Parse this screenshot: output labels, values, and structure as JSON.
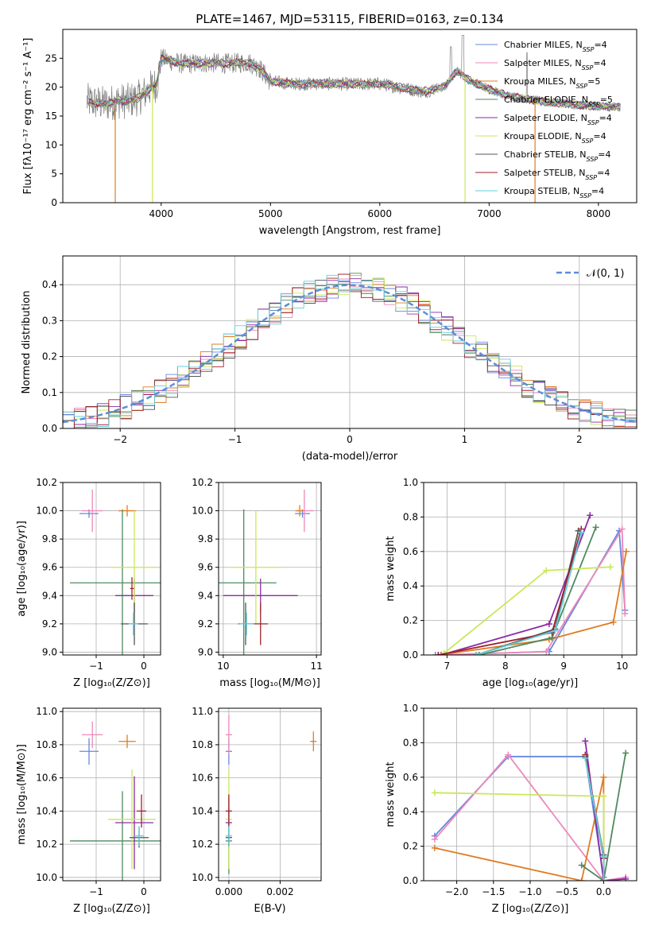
{
  "figure_title": "PLATE=1467, MJD=53115, FIBERID=0163, z=0.134",
  "colors": {
    "c1": "#6688dd",
    "c2": "#ee88bb",
    "c3": "#e07b22",
    "c4": "#4f8a5f",
    "c5": "#8a2aa8",
    "c6": "#c8e85a",
    "c7": "#555555",
    "c8": "#a0202a",
    "c9": "#66ccdd",
    "data_gray": "#7f7f7f",
    "ref": "#5b8fd8"
  },
  "chart_data": [
    {
      "id": "spectrum",
      "type": "line",
      "title": "PLATE=1467, MJD=53115, FIBERID=0163, z=0.134",
      "xlabel": "wavelength [Angstrom, rest frame]",
      "ylabel": "Flux [fλ10⁻¹⁷ erg cm⁻² s⁻¹ A⁻¹]",
      "xlim": [
        3100,
        8350
      ],
      "ylim": [
        0,
        30
      ],
      "xticks": [
        4000,
        5000,
        6000,
        7000,
        8000
      ],
      "yticks": [
        0,
        5,
        10,
        15,
        20,
        25
      ],
      "grid": false,
      "legend": "top-right",
      "continuum": [
        [
          3320,
          17.6
        ],
        [
          3400,
          17.3
        ],
        [
          3500,
          17.1
        ],
        [
          3600,
          17.6
        ],
        [
          3700,
          17.6
        ],
        [
          3800,
          18.2
        ],
        [
          3900,
          19.8
        ],
        [
          3960,
          20.6
        ],
        [
          4000,
          25.0
        ],
        [
          4100,
          24.5
        ],
        [
          4200,
          24.0
        ],
        [
          4400,
          24.2
        ],
        [
          4600,
          24.1
        ],
        [
          4800,
          24.3
        ],
        [
          4900,
          23.3
        ],
        [
          5000,
          21.0
        ],
        [
          5200,
          20.6
        ],
        [
          5500,
          20.6
        ],
        [
          5800,
          20.5
        ],
        [
          6000,
          20.6
        ],
        [
          6200,
          19.9
        ],
        [
          6400,
          19.2
        ],
        [
          6600,
          20.2
        ],
        [
          6700,
          22.8
        ],
        [
          6800,
          21.4
        ],
        [
          7000,
          19.6
        ],
        [
          7200,
          18.4
        ],
        [
          7500,
          17.5
        ],
        [
          7800,
          16.9
        ],
        [
          8000,
          16.7
        ],
        [
          8200,
          16.5
        ]
      ],
      "dropouts": [
        [
          3580,
          "c3"
        ],
        [
          3920,
          "c6"
        ],
        [
          6780,
          "c6"
        ],
        [
          7420,
          "c3"
        ]
      ],
      "series": [
        {
          "label": "Chabrier MILES, N",
          "sub": "SSP",
          "suffix": "=4",
          "color": "c1"
        },
        {
          "label": "Salpeter MILES, N",
          "sub": "SSP",
          "suffix": "=4",
          "color": "c2"
        },
        {
          "label": "Kroupa MILES, N",
          "sub": "SSP",
          "suffix": "=5",
          "color": "c3"
        },
        {
          "label": "Chabrier ELODIE, N",
          "sub": "SSP",
          "suffix": "=5",
          "color": "c4"
        },
        {
          "label": "Salpeter ELODIE, N",
          "sub": "SSP",
          "suffix": "=4",
          "color": "c5"
        },
        {
          "label": "Kroupa ELODIE, N",
          "sub": "SSP",
          "suffix": "=4",
          "color": "c6"
        },
        {
          "label": "Chabrier STELIB, N",
          "sub": "SSP",
          "suffix": "=4",
          "color": "c7"
        },
        {
          "label": "Salpeter STELIB, N",
          "sub": "SSP",
          "suffix": "=4",
          "color": "c8"
        },
        {
          "label": "Kroupa STELIB, N",
          "sub": "SSP",
          "suffix": "=4",
          "color": "c9"
        }
      ]
    },
    {
      "id": "residuals",
      "type": "line",
      "xlabel": "(data-model)/error",
      "ylabel": "Normed distribution",
      "xlim": [
        -2.5,
        2.5
      ],
      "ylim": [
        0,
        0.48
      ],
      "xticks": [
        -2,
        -1,
        0,
        1,
        2
      ],
      "yticks": [
        0.0,
        0.1,
        0.2,
        0.3,
        0.4
      ],
      "grid": true,
      "legend": "top-right",
      "reference_label": "𝒩(0, 1)"
    },
    {
      "id": "age_vs_Z",
      "type": "scatter",
      "xlabel": "Z [log₁₀(Z/Z⊙)]",
      "ylabel": "age  [log₁₀(age/yr)]",
      "xlim": [
        -1.7,
        0.35
      ],
      "ylim": [
        8.98,
        10.2
      ],
      "xticks": [
        -1,
        0
      ],
      "yticks": [
        9.0,
        9.2,
        9.4,
        9.6,
        9.8,
        10.0,
        10.2
      ],
      "grid": true,
      "points": [
        {
          "color": "c1",
          "x": -1.15,
          "y": 9.98,
          "xe": 0.2,
          "ye": 0.03
        },
        {
          "color": "c2",
          "x": -1.08,
          "y": 10.0,
          "xe": 0.22,
          "ye": 0.15
        },
        {
          "color": "c3",
          "x": -0.35,
          "y": 10.0,
          "xe": 0.18,
          "ye": 0.04
        },
        {
          "color": "c4",
          "x": -0.45,
          "y": 9.49,
          "xe": 1.1,
          "ye": 0.52
        },
        {
          "color": "c5",
          "x": -0.2,
          "y": 9.4,
          "xe": 0.4,
          "ye": 0.12
        },
        {
          "color": "c6",
          "x": -0.2,
          "y": 9.6,
          "xe": 0.48,
          "ye": 0.4
        },
        {
          "color": "c7",
          "x": -0.2,
          "y": 9.2,
          "xe": 0.28,
          "ye": 0.15
        },
        {
          "color": "c8",
          "x": -0.25,
          "y": 9.45,
          "xe": 0.04,
          "ye": 0.08
        },
        {
          "color": "c9",
          "x": -0.22,
          "y": 9.2,
          "xe": 0.1,
          "ye": 0.08
        }
      ]
    },
    {
      "id": "age_vs_mass",
      "type": "scatter",
      "xlabel": "mass [log₁₀(M/M⊙)]",
      "xlim": [
        9.95,
        11.05
      ],
      "ylim": [
        8.98,
        10.2
      ],
      "xticks": [
        10,
        11
      ],
      "yticks": [
        9.0,
        9.2,
        9.4,
        9.6,
        9.8,
        10.0,
        10.2
      ],
      "grid": true,
      "points": [
        {
          "color": "c1",
          "x": 10.85,
          "y": 9.98,
          "xe": 0.08,
          "ye": 0.03
        },
        {
          "color": "c2",
          "x": 10.87,
          "y": 10.0,
          "xe": 0.1,
          "ye": 0.15
        },
        {
          "color": "c3",
          "x": 10.82,
          "y": 10.0,
          "xe": 0.04,
          "ye": 0.04
        },
        {
          "color": "c4",
          "x": 10.22,
          "y": 9.49,
          "xe": 0.35,
          "ye": 0.52
        },
        {
          "color": "c5",
          "x": 10.4,
          "y": 9.4,
          "xe": 0.4,
          "ye": 0.12
        },
        {
          "color": "c6",
          "x": 10.35,
          "y": 9.6,
          "xe": 0.28,
          "ye": 0.4
        },
        {
          "color": "c7",
          "x": 10.24,
          "y": 9.2,
          "xe": 0.08,
          "ye": 0.15
        },
        {
          "color": "c8",
          "x": 10.4,
          "y": 9.2,
          "xe": 0.08,
          "ye": 0.15
        },
        {
          "color": "c9",
          "x": 10.25,
          "y": 9.2,
          "xe": 0.08,
          "ye": 0.08
        }
      ]
    },
    {
      "id": "weight_vs_age",
      "type": "line",
      "xlabel": "age  [log₁₀(age/yr)]",
      "ylabel": "mass weight",
      "xlim": [
        6.6,
        10.25
      ],
      "ylim": [
        0,
        1.0
      ],
      "xticks": [
        7,
        8,
        9,
        10
      ],
      "yticks": [
        0.0,
        0.2,
        0.4,
        0.6,
        0.8,
        1.0
      ],
      "grid": true,
      "series": [
        {
          "color": "c1",
          "x": [
            6.8,
            8.75,
            9.95,
            10.05
          ],
          "y": [
            0.0,
            0.02,
            0.72,
            0.26
          ]
        },
        {
          "color": "c2",
          "x": [
            6.85,
            8.7,
            10.0,
            10.05
          ],
          "y": [
            0.0,
            0.02,
            0.73,
            0.24
          ]
        },
        {
          "color": "c3",
          "x": [
            6.85,
            8.75,
            9.85,
            10.07
          ],
          "y": [
            0.0,
            0.09,
            0.19,
            0.6
          ]
        },
        {
          "color": "c4",
          "x": [
            7.55,
            8.8,
            9.55
          ],
          "y": [
            0.0,
            0.1,
            0.74
          ]
        },
        {
          "color": "c5",
          "x": [
            6.9,
            8.75,
            9.45
          ],
          "y": [
            0.0,
            0.18,
            0.81
          ]
        },
        {
          "color": "c6",
          "x": [
            6.95,
            8.7,
            9.8
          ],
          "y": [
            0.01,
            0.49,
            0.51
          ]
        },
        {
          "color": "c7",
          "x": [
            7.5,
            8.85,
            9.25
          ],
          "y": [
            0.0,
            0.15,
            0.72
          ]
        },
        {
          "color": "c8",
          "x": [
            6.85,
            8.8,
            9.3
          ],
          "y": [
            0.0,
            0.13,
            0.73
          ]
        },
        {
          "color": "c9",
          "x": [
            7.5,
            8.85,
            9.3
          ],
          "y": [
            0.0,
            0.14,
            0.71
          ]
        }
      ]
    },
    {
      "id": "mass_vs_Z",
      "type": "scatter",
      "xlabel": "Z [log₁₀(Z/Z⊙)]",
      "ylabel": "mass [log₁₀(M/M⊙)]",
      "xlim": [
        -1.7,
        0.35
      ],
      "ylim": [
        9.98,
        11.02
      ],
      "xticks": [
        -1,
        0
      ],
      "yticks": [
        10.0,
        10.2,
        10.4,
        10.6,
        10.8,
        11.0
      ],
      "grid": true,
      "points": [
        {
          "color": "c1",
          "x": -1.15,
          "y": 10.76,
          "xe": 0.2,
          "ye": 0.08
        },
        {
          "color": "c2",
          "x": -1.08,
          "y": 10.86,
          "xe": 0.22,
          "ye": 0.08
        },
        {
          "color": "c3",
          "x": -0.35,
          "y": 10.82,
          "xe": 0.18,
          "ye": 0.04
        },
        {
          "color": "c4",
          "x": -0.45,
          "y": 10.22,
          "xe": 1.1,
          "ye": 0.3
        },
        {
          "color": "c5",
          "x": -0.2,
          "y": 10.33,
          "xe": 0.4,
          "ye": 0.28
        },
        {
          "color": "c6",
          "x": -0.25,
          "y": 10.35,
          "xe": 0.5,
          "ye": 0.3
        },
        {
          "color": "c7",
          "x": -0.1,
          "y": 10.24,
          "xe": 0.2,
          "ye": 0.06
        },
        {
          "color": "c8",
          "x": -0.05,
          "y": 10.4,
          "xe": 0.1,
          "ye": 0.1
        },
        {
          "color": "c9",
          "x": -0.1,
          "y": 10.25,
          "xe": 0.1,
          "ye": 0.06
        }
      ]
    },
    {
      "id": "mass_vs_ebv",
      "type": "scatter",
      "xlabel": "E(B-V)",
      "xlim": [
        -0.0004,
        0.0036
      ],
      "ylim": [
        9.98,
        11.02
      ],
      "xticks": [
        0.0,
        0.002
      ],
      "xtick_labels": [
        "0.000",
        "0.002"
      ],
      "yticks": [
        10.0,
        10.2,
        10.4,
        10.6,
        10.8,
        11.0
      ],
      "grid": true,
      "points": [
        {
          "color": "c1",
          "x": 0.0,
          "y": 10.76,
          "ye": 0.08
        },
        {
          "color": "c2",
          "x": 0.0,
          "y": 10.86,
          "ye": 0.12
        },
        {
          "color": "c3",
          "x": 0.0033,
          "y": 10.82,
          "ye": 0.06
        },
        {
          "color": "c4",
          "x": 0.0,
          "y": 10.22,
          "ye": 0.2
        },
        {
          "color": "c5",
          "x": 0.0,
          "y": 10.33,
          "ye": 0.15
        },
        {
          "color": "c6",
          "x": 0.0,
          "y": 10.35,
          "ye": 0.3
        },
        {
          "color": "c7",
          "x": 0.0,
          "y": 10.24,
          "ye": 0.05
        },
        {
          "color": "c8",
          "x": 0.0,
          "y": 10.4,
          "ye": 0.1
        },
        {
          "color": "c9",
          "x": 0.0,
          "y": 10.25,
          "ye": 0.06
        }
      ]
    },
    {
      "id": "weight_vs_Z",
      "type": "line",
      "xlabel": "Z [log₁₀(Z/Z⊙)]",
      "ylabel": "mass weight",
      "xlim": [
        -2.45,
        0.45
      ],
      "ylim": [
        0,
        1.0
      ],
      "xticks": [
        -2.0,
        -1.5,
        -1.0,
        -0.5,
        0.0
      ],
      "xtick_labels": [
        "−2.0",
        "−1.5",
        "−1.0",
        "−0.5",
        "0.0"
      ],
      "yticks": [
        0.0,
        0.2,
        0.4,
        0.6,
        0.8,
        1.0
      ],
      "grid": true,
      "series": [
        {
          "color": "c1",
          "x": [
            -2.3,
            -1.3,
            -0.25,
            0.0
          ],
          "y": [
            0.26,
            0.72,
            0.72,
            0.02
          ]
        },
        {
          "color": "c2",
          "x": [
            -2.3,
            -1.3,
            0.0,
            0.3
          ],
          "y": [
            0.24,
            0.73,
            0.0,
            0.02
          ]
        },
        {
          "color": "c3",
          "x": [
            -2.3,
            -0.3,
            0.0,
            0.0
          ],
          "y": [
            0.19,
            0.0,
            0.6,
            0.0
          ]
        },
        {
          "color": "c4",
          "x": [
            -0.3,
            0.0,
            0.3
          ],
          "y": [
            0.09,
            0.0,
            0.74
          ]
        },
        {
          "color": "c5",
          "x": [
            -0.25,
            0.0,
            0.3
          ],
          "y": [
            0.81,
            0.0,
            0.01
          ]
        },
        {
          "color": "c6",
          "x": [
            -2.3,
            0.0,
            0.0
          ],
          "y": [
            0.51,
            0.49,
            0.0
          ]
        },
        {
          "color": "c7",
          "x": [
            -0.25,
            0.0,
            0.0
          ],
          "y": [
            0.72,
            0.15,
            0.0
          ]
        },
        {
          "color": "c8",
          "x": [
            -0.25,
            0.0,
            0.0
          ],
          "y": [
            0.73,
            0.13,
            0.0
          ]
        },
        {
          "color": "c9",
          "x": [
            -0.25,
            0.0,
            0.0
          ],
          "y": [
            0.71,
            0.14,
            0.0
          ]
        }
      ]
    }
  ]
}
